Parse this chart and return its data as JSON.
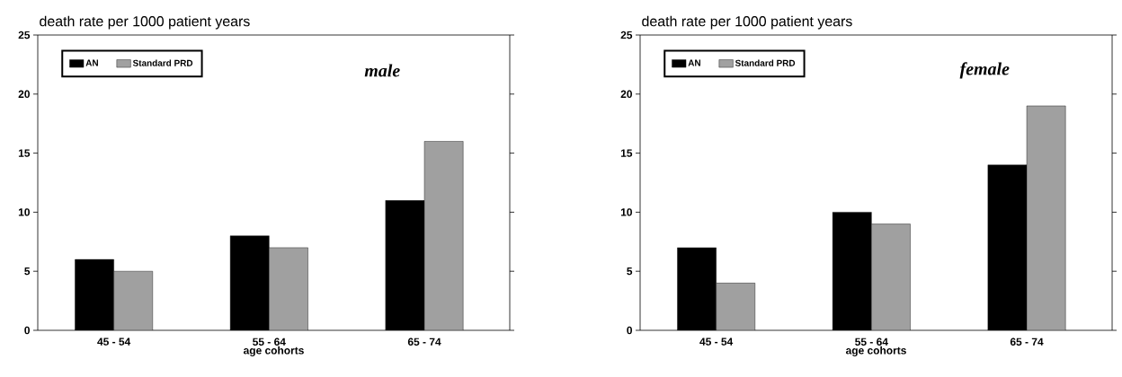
{
  "chart_data": [
    {
      "type": "bar",
      "title": "death rate per 1000 patient years",
      "xlabel": "age cohorts",
      "annotations": [
        "male"
      ],
      "categories": [
        "45 - 54",
        "55 - 64",
        "65 - 74"
      ],
      "series": [
        {
          "name": "AN",
          "color": "#000000",
          "values": [
            6,
            8,
            11
          ]
        },
        {
          "name": "Standard PRD",
          "color": "#a0a0a0",
          "values": [
            5,
            7,
            16
          ]
        }
      ],
      "ylim": [
        0,
        25
      ],
      "yticks": [
        0,
        5,
        10,
        15,
        20,
        25
      ],
      "grid": false,
      "legend": "top left"
    },
    {
      "type": "bar",
      "title": "death rate per 1000 patient years",
      "xlabel": "age cohorts",
      "annotations": [
        "female"
      ],
      "categories": [
        "45 - 54",
        "55 - 64",
        "65 - 74"
      ],
      "series": [
        {
          "name": "AN",
          "color": "#000000",
          "values": [
            7,
            10,
            14
          ]
        },
        {
          "name": "Standard PRD",
          "color": "#a0a0a0",
          "values": [
            4,
            9,
            19
          ]
        }
      ],
      "ylim": [
        0,
        25
      ],
      "yticks": [
        0,
        5,
        10,
        15,
        20,
        25
      ],
      "grid": false,
      "legend": "top left"
    }
  ]
}
